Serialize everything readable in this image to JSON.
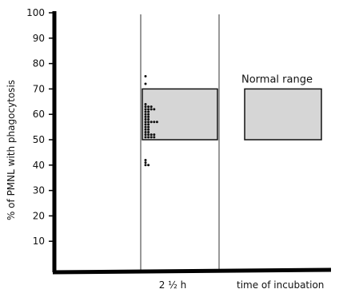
{
  "chart_data": {
    "type": "scatter",
    "title": "",
    "ylabel": "% of PMNL with phagocytosis",
    "xlabel": "time of incubation",
    "ylim": [
      0,
      100
    ],
    "yticks": [
      10,
      20,
      30,
      40,
      50,
      60,
      70,
      80,
      90,
      100
    ],
    "categories": [
      "2 ½ h"
    ],
    "shaded_ranges": [
      {
        "category": "2 ½ h",
        "low": 50,
        "high": 70
      }
    ],
    "legend": {
      "label": "Normal range",
      "low": 50,
      "high": 70
    },
    "series": [
      {
        "category": "2 ½ h",
        "values": [
          75,
          72,
          64,
          63,
          63,
          63,
          62,
          62,
          62,
          62,
          61,
          61,
          60,
          60,
          59,
          59,
          58,
          58,
          57,
          57,
          57,
          57,
          57,
          56,
          56,
          55,
          55,
          54,
          54,
          53,
          53,
          52,
          52,
          52,
          52,
          51,
          51,
          51,
          51,
          42,
          41,
          40,
          40
        ]
      }
    ],
    "grid": false,
    "colors": {
      "ink": "#111111",
      "fill": "#d6d6d6",
      "background": "#ffffff"
    }
  }
}
